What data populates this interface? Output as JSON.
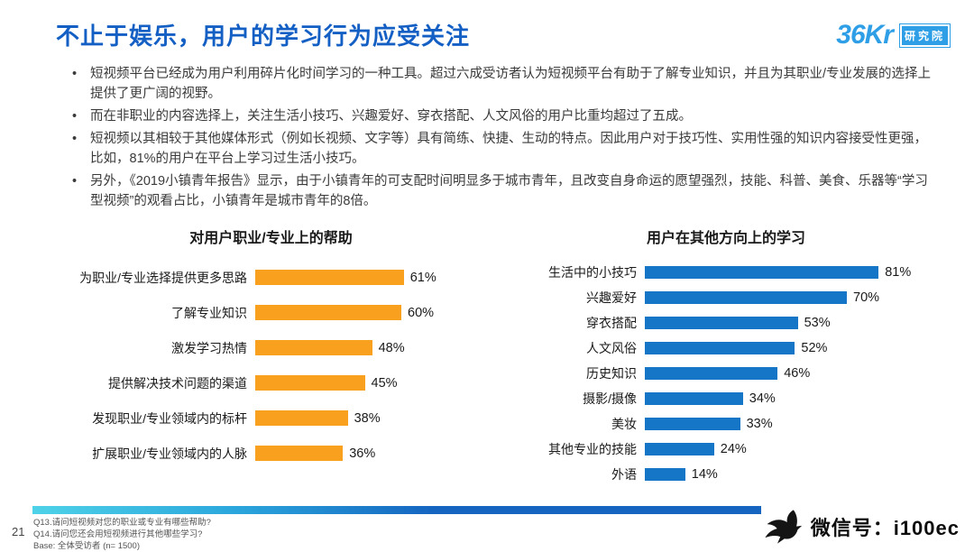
{
  "header": {
    "title": "不止于娱乐，用户的学习行为应受关注",
    "logo": {
      "brand": "36Kr",
      "sub": "研究院"
    }
  },
  "bullets": [
    "短视频平台已经成为用户利用碎片化时间学习的一种工具。超过六成受访者认为短视频平台有助于了解专业知识，并且为其职业/专业发展的选择上提供了更广阔的视野。",
    "而在非职业的内容选择上，关注生活小技巧、兴趣爱好、穿衣搭配、人文风俗的用户比重均超过了五成。",
    "短视频以其相较于其他媒体形式（例如长视频、文字等）具有简练、快捷、生动的特点。因此用户对于技巧性、实用性强的知识内容接受性更强，比如，81%的用户在平台上学习过生活小技巧。",
    "另外，《2019小镇青年报告》显示，由于小镇青年的可支配时间明显多于城市青年，且改变自身命运的愿望强烈，技能、科普、美食、乐器等“学习型视频”的观看占比，小镇青年是城市青年的8倍。"
  ],
  "chart_data": [
    {
      "type": "bar",
      "orientation": "horizontal",
      "title": "对用户职业/专业上的帮助",
      "categories": [
        "为职业/专业选择提供更多思路",
        "了解专业知识",
        "激发学习热情",
        "提供解决技术问题的渠道",
        "发现职业/专业领域内的标杆",
        "扩展职业/专业领域内的人脉"
      ],
      "values": [
        61,
        60,
        48,
        45,
        38,
        36
      ],
      "value_suffix": "%",
      "xlim": [
        0,
        100
      ],
      "bar_color": "#F9A11E",
      "grid": false,
      "legend": "none"
    },
    {
      "type": "bar",
      "orientation": "horizontal",
      "title": "用户在其他方向上的学习",
      "categories": [
        "生活中的小技巧",
        "兴趣爱好",
        "穿衣搭配",
        "人文风俗",
        "历史知识",
        "摄影/摄像",
        "美妆",
        "其他专业的技能",
        "外语"
      ],
      "values": [
        81,
        70,
        53,
        52,
        46,
        34,
        33,
        24,
        14
      ],
      "value_suffix": "%",
      "xlim": [
        0,
        100
      ],
      "bar_color": "#1576C8",
      "grid": false,
      "legend": "none"
    }
  ],
  "footer": {
    "page_number": "21",
    "notes": [
      "Q13.请问短视频对您的职业或专业有哪些帮助?",
      "Q14.请问您还会用短视频进行其他哪些学习?",
      "Base: 全体受访者 (n= 1500)"
    ],
    "wechat": "微信号：i100ec"
  }
}
